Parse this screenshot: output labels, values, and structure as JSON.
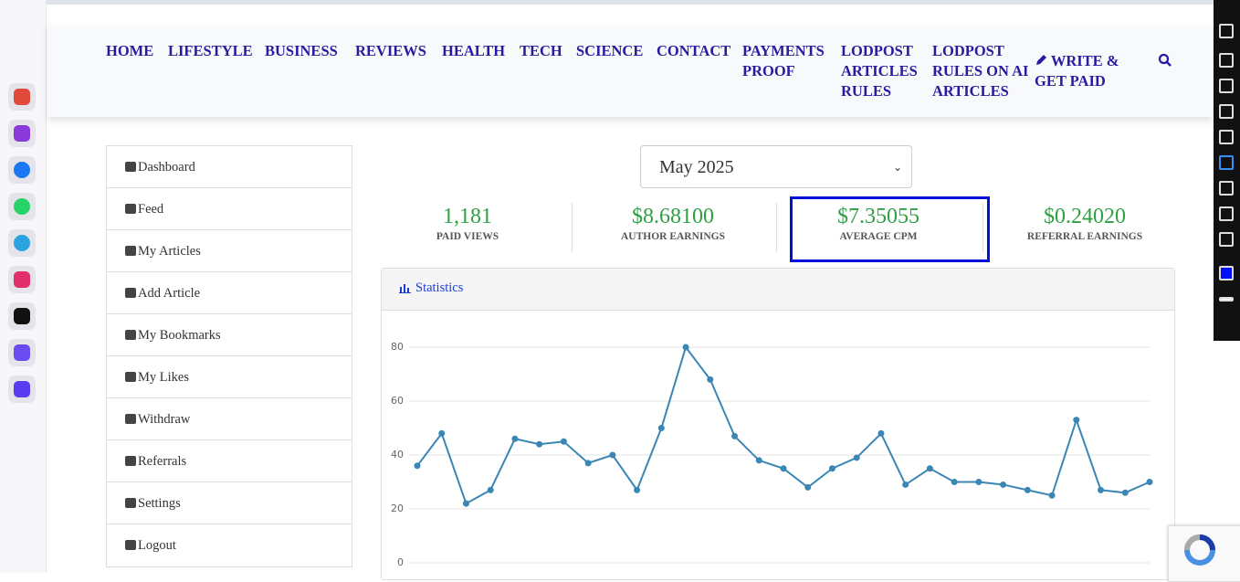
{
  "nav": {
    "items": [
      "HOME",
      "LIFESTYLE",
      "BUSINESS",
      "REVIEWS",
      "HEALTH",
      "TECH",
      "SCIENCE",
      "CONTACT",
      "PAYMENTS PROOF",
      "LODPOST ARTICLES RULES",
      "LODPOST RULES ON AI ARTICLES"
    ],
    "cta": "WRITE & GET PAID"
  },
  "menu": [
    "Dashboard",
    "Feed",
    "My Articles",
    "Add Article",
    "My Bookmarks",
    "My Likes",
    "Withdraw",
    "Referrals",
    "Settings",
    "Logout"
  ],
  "month": "May 2025",
  "stats": [
    {
      "value": "1,181",
      "label": "PAID VIEWS"
    },
    {
      "value": "$8.68100",
      "label": "AUTHOR EARNINGS"
    },
    {
      "value": "$7.35055",
      "label": "AVERAGE CPM"
    },
    {
      "value": "$0.24020",
      "label": "REFERRAL EARNINGS"
    }
  ],
  "panel_title": "Statistics",
  "chart_data": {
    "type": "line",
    "color": "#3a86b4",
    "grid": true,
    "values": [
      36,
      48,
      22,
      27,
      46,
      44,
      45,
      37,
      40,
      27,
      50,
      80,
      68,
      47,
      38,
      35,
      28,
      35,
      39,
      48,
      29,
      35,
      30,
      30,
      29,
      27,
      25,
      53,
      27,
      26,
      30
    ],
    "ylim": [
      0,
      80
    ],
    "yticks": [
      0,
      20,
      40,
      60,
      80
    ]
  }
}
